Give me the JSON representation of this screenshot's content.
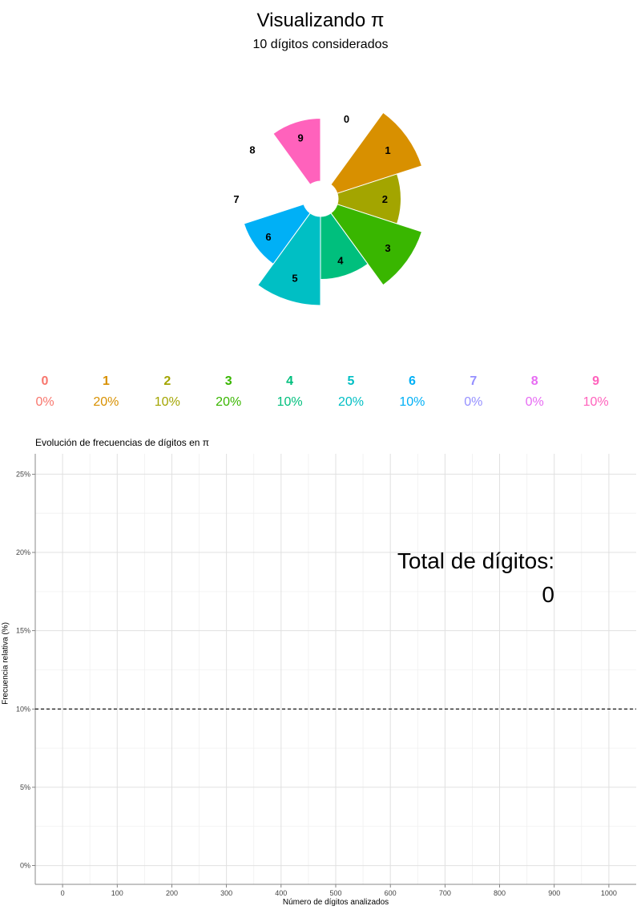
{
  "header": {
    "title": "Visualizando π",
    "subtitle": "10 dígitos considerados"
  },
  "chart_data": [
    {
      "type": "pie",
      "style": "rose / donut",
      "categories": [
        "0",
        "1",
        "2",
        "3",
        "4",
        "5",
        "6",
        "7",
        "8",
        "9"
      ],
      "values": [
        0,
        20,
        10,
        20,
        10,
        20,
        10,
        0,
        0,
        10
      ],
      "colors": [
        "#F8766D",
        "#D89000",
        "#A3A500",
        "#39B600",
        "#00BF7D",
        "#00BFC4",
        "#00B0F6",
        "#9590FF",
        "#E76BF3",
        "#FF62BC"
      ],
      "legend": {
        "digits": [
          "0",
          "1",
          "2",
          "3",
          "4",
          "5",
          "6",
          "7",
          "8",
          "9"
        ],
        "percents": [
          "0%",
          "20%",
          "10%",
          "20%",
          "10%",
          "20%",
          "10%",
          "0%",
          "0%",
          "10%"
        ]
      }
    },
    {
      "type": "line",
      "title": "Evolución de frecuencias de dígitos en π",
      "xlabel": "Número de dígitos analizados",
      "ylabel": "Frecuencia relativa (%)",
      "xlim": [
        -50,
        1050
      ],
      "ylim": [
        -1.2,
        26.3
      ],
      "x_ticks": [
        "0",
        "100",
        "200",
        "300",
        "400",
        "500",
        "600",
        "700",
        "800",
        "900",
        "1000"
      ],
      "y_ticks": [
        "0%",
        "5%",
        "10%",
        "15%",
        "20%",
        "25%"
      ],
      "reference_line": 10,
      "series": [],
      "grid": true,
      "annotation": {
        "label": "Total de dígitos:",
        "value": "0"
      }
    }
  ]
}
